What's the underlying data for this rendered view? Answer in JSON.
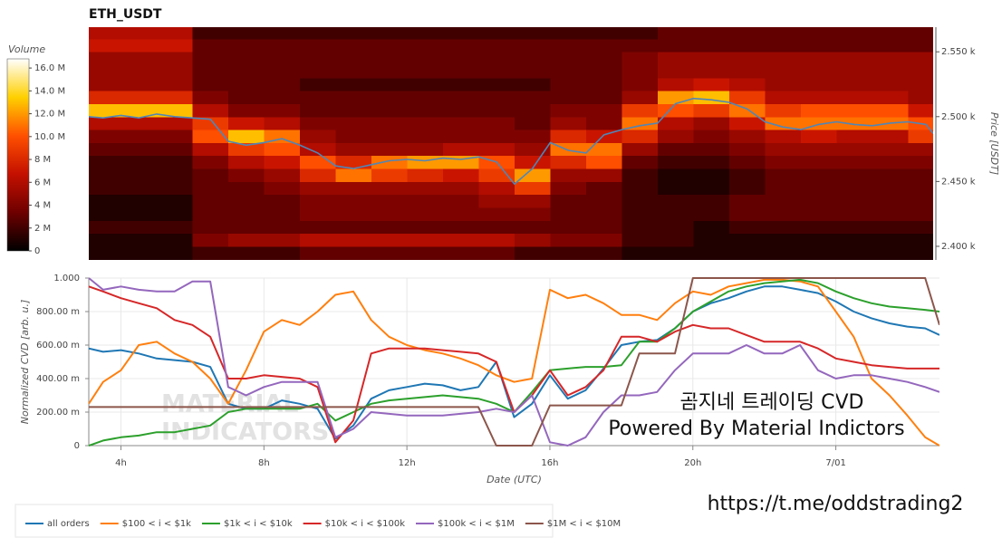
{
  "chart_data": [
    {
      "type": "heatmap",
      "title": "ETH_USDT",
      "x_bins": [
        3,
        4,
        5,
        6,
        7,
        8,
        9,
        10,
        11,
        12,
        13,
        14,
        15,
        16,
        17,
        18,
        19,
        20,
        21,
        22,
        23,
        24,
        25,
        26,
        27
      ],
      "y_bins": [
        2390,
        2400,
        2410,
        2420,
        2430,
        2440,
        2450,
        2460,
        2470,
        2480,
        2490,
        2500,
        2510,
        2520,
        2530,
        2540,
        2550,
        2560,
        2570
      ],
      "z": [
        [
          1,
          1,
          1,
          2,
          2,
          2,
          3,
          3,
          3,
          3,
          3,
          3,
          2,
          2,
          2,
          1,
          1,
          1,
          1,
          1,
          1,
          1,
          1,
          1
        ],
        [
          1,
          1,
          1,
          4,
          5,
          5,
          6,
          6,
          6,
          6,
          6,
          6,
          5,
          4,
          4,
          2,
          2,
          1,
          1,
          1,
          1,
          1,
          1,
          1
        ],
        [
          2,
          2,
          2,
          3,
          3,
          3,
          3,
          3,
          3,
          3,
          3,
          3,
          3,
          3,
          3,
          2,
          2,
          1,
          2,
          2,
          2,
          2,
          2,
          2
        ],
        [
          1,
          1,
          1,
          3,
          3,
          3,
          4,
          4,
          4,
          4,
          4,
          4,
          4,
          3,
          3,
          2,
          2,
          2,
          3,
          3,
          3,
          3,
          3,
          3
        ],
        [
          1,
          1,
          1,
          3,
          3,
          3,
          4,
          4,
          4,
          4,
          4,
          5,
          5,
          3,
          3,
          2,
          2,
          2,
          3,
          3,
          3,
          3,
          3,
          3
        ],
        [
          2,
          2,
          2,
          3,
          3,
          4,
          5,
          5,
          5,
          5,
          5,
          6,
          9,
          4,
          3,
          2,
          1,
          1,
          2,
          3,
          3,
          3,
          3,
          3
        ],
        [
          2,
          2,
          2,
          3,
          4,
          5,
          8,
          11,
          9,
          8,
          7,
          9,
          12,
          5,
          5,
          2,
          1,
          1,
          2,
          3,
          3,
          3,
          3,
          3
        ],
        [
          2,
          2,
          2,
          4,
          6,
          7,
          10,
          8,
          11,
          12,
          12,
          10,
          7,
          8,
          10,
          3,
          2,
          2,
          3,
          4,
          4,
          4,
          4,
          4
        ],
        [
          3,
          3,
          3,
          6,
          9,
          10,
          6,
          5,
          5,
          5,
          6,
          6,
          5,
          11,
          11,
          5,
          3,
          3,
          4,
          5,
          5,
          5,
          5,
          5
        ],
        [
          4,
          4,
          4,
          10,
          13,
          11,
          5,
          4,
          4,
          4,
          4,
          4,
          4,
          8,
          7,
          8,
          5,
          4,
          5,
          6,
          7,
          6,
          6,
          9
        ],
        [
          6,
          6,
          6,
          9,
          7,
          6,
          4,
          4,
          4,
          4,
          4,
          4,
          3,
          5,
          4,
          11,
          6,
          5,
          7,
          11,
          11,
          11,
          11,
          10
        ],
        [
          13,
          13,
          13,
          6,
          4,
          4,
          3,
          3,
          3,
          3,
          3,
          3,
          3,
          4,
          4,
          9,
          10,
          9,
          11,
          9,
          10,
          10,
          10,
          7
        ],
        [
          8,
          8,
          8,
          4,
          3,
          3,
          3,
          3,
          3,
          3,
          3,
          3,
          3,
          3,
          3,
          5,
          12,
          13,
          9,
          6,
          6,
          6,
          6,
          5
        ],
        [
          5,
          5,
          5,
          3,
          3,
          3,
          2,
          2,
          2,
          2,
          2,
          2,
          2,
          3,
          3,
          4,
          6,
          7,
          6,
          5,
          5,
          5,
          5,
          5
        ],
        [
          5,
          5,
          5,
          3,
          3,
          3,
          3,
          3,
          3,
          3,
          3,
          3,
          3,
          3,
          3,
          4,
          5,
          5,
          5,
          5,
          5,
          5,
          5,
          5
        ],
        [
          5,
          5,
          5,
          3,
          3,
          3,
          3,
          3,
          3,
          3,
          3,
          3,
          3,
          3,
          3,
          4,
          5,
          5,
          5,
          5,
          5,
          5,
          5,
          5
        ],
        [
          7,
          7,
          7,
          3,
          3,
          3,
          3,
          3,
          3,
          3,
          3,
          3,
          3,
          3,
          3,
          3,
          3,
          3,
          3,
          3,
          3,
          3,
          3,
          3
        ],
        [
          6,
          6,
          6,
          2,
          2,
          2,
          2,
          2,
          2,
          2,
          2,
          2,
          2,
          2,
          2,
          2,
          3,
          3,
          3,
          3,
          3,
          3,
          3,
          3
        ]
      ],
      "xlim": [
        3.1,
        26.7
      ],
      "ylim": [
        2389.5,
        2569
      ],
      "y_label": "Price [USDT]",
      "yticks": [
        {
          "value": 2400,
          "label": "2.400 k"
        },
        {
          "value": 2450,
          "label": "2.450 k"
        },
        {
          "value": 2500,
          "label": "2.500 k"
        },
        {
          "value": 2550,
          "label": "2.550 k"
        }
      ],
      "price_line": {
        "color": "#4f86b8",
        "x": [
          3.1,
          3.5,
          4,
          4.5,
          5,
          5.5,
          6,
          6.5,
          7,
          7.5,
          8,
          8.5,
          9,
          9.5,
          10,
          10.5,
          11,
          11.5,
          12,
          12.5,
          13,
          13.5,
          14,
          14.5,
          15,
          15.5,
          16,
          16.5,
          17,
          17.5,
          18,
          18.5,
          19,
          19.5,
          20,
          20.5,
          21,
          21.5,
          22,
          22.5,
          23,
          23.5,
          24,
          24.5,
          25,
          25.5,
          26,
          26.5,
          26.7
        ],
        "values": [
          2500,
          2499,
          2501,
          2499,
          2502,
          2500,
          2499,
          2498,
          2481,
          2478,
          2480,
          2483,
          2478,
          2472,
          2462,
          2460,
          2463,
          2466,
          2467,
          2466,
          2468,
          2467,
          2469,
          2465,
          2448,
          2460,
          2480,
          2474,
          2472,
          2486,
          2490,
          2493,
          2495,
          2510,
          2514,
          2513,
          2511,
          2506,
          2496,
          2492,
          2490,
          2494,
          2496,
          2494,
          2493,
          2495,
          2496,
          2494,
          2487
        ]
      },
      "colorbar": {
        "title": "Volume",
        "lim": [
          0,
          16.8
        ],
        "colorscale": [
          "#000000",
          "#6e0000",
          "#c41000",
          "#ff5000",
          "#ffd000",
          "#ffffff"
        ],
        "ticks": [
          0,
          {
            "value": 2,
            "label": "2 M"
          },
          {
            "value": 4,
            "label": "4 M"
          },
          {
            "value": 6,
            "label": "6 M"
          },
          {
            "value": 8,
            "label": "8 M"
          },
          {
            "value": 10,
            "label": "10.0 M"
          },
          {
            "value": 12,
            "label": "12.0 M"
          },
          {
            "value": 14,
            "label": "14.0 M"
          },
          {
            "value": 16,
            "label": "16.0 M"
          }
        ]
      }
    },
    {
      "type": "line",
      "x": [
        3.1,
        3.5,
        4,
        4.5,
        5,
        5.5,
        6,
        6.5,
        7,
        7.5,
        8,
        8.5,
        9,
        9.5,
        10,
        10.5,
        11,
        11.5,
        12,
        12.5,
        13,
        13.5,
        14,
        14.5,
        15,
        15.5,
        16,
        16.5,
        17,
        17.5,
        18,
        18.5,
        19,
        19.5,
        20,
        20.5,
        21,
        21.5,
        22,
        22.5,
        23,
        23.5,
        24,
        24.5,
        25,
        25.5,
        26,
        26.5,
        26.9
      ],
      "xlim": [
        3.1,
        26.9
      ],
      "xticks": [
        {
          "value": 4,
          "label": "4h"
        },
        {
          "value": 8,
          "label": "8h"
        },
        {
          "value": 12,
          "label": "12h"
        },
        {
          "value": 16,
          "label": "16h"
        },
        {
          "value": 20,
          "label": "20h"
        },
        {
          "value": 24,
          "label": "7/01"
        }
      ],
      "ylim": [
        0,
        1
      ],
      "yticks": [
        0,
        {
          "value": 0.2,
          "label": "200.00 m"
        },
        {
          "value": 0.4,
          "label": "400.00 m"
        },
        {
          "value": 0.6,
          "label": "600.00 m"
        },
        {
          "value": 0.8,
          "label": "800.00 m"
        },
        {
          "value": 1,
          "label": "1.000"
        }
      ],
      "x_label": "Date (UTC)",
      "y_label": "Normalized CVD [arb. u.]",
      "grid": true,
      "legend": "below",
      "series": [
        {
          "name": "all orders",
          "color": "#1f77b4",
          "values": [
            0.58,
            0.56,
            0.57,
            0.55,
            0.52,
            0.51,
            0.5,
            0.47,
            0.25,
            0.22,
            0.22,
            0.27,
            0.25,
            0.22,
            0.04,
            0.12,
            0.28,
            0.33,
            0.35,
            0.37,
            0.36,
            0.33,
            0.35,
            0.5,
            0.17,
            0.25,
            0.42,
            0.28,
            0.33,
            0.46,
            0.6,
            0.62,
            0.63,
            0.7,
            0.8,
            0.85,
            0.88,
            0.92,
            0.95,
            0.95,
            0.93,
            0.91,
            0.86,
            0.8,
            0.76,
            0.73,
            0.71,
            0.7,
            0.66
          ]
        },
        {
          "name": "$100 < i < $1k",
          "color": "#ff7f0e",
          "values": [
            0.25,
            0.38,
            0.45,
            0.6,
            0.62,
            0.55,
            0.5,
            0.4,
            0.25,
            0.45,
            0.68,
            0.75,
            0.72,
            0.8,
            0.9,
            0.92,
            0.75,
            0.65,
            0.6,
            0.57,
            0.55,
            0.52,
            0.48,
            0.42,
            0.38,
            0.4,
            0.93,
            0.88,
            0.9,
            0.85,
            0.78,
            0.78,
            0.75,
            0.85,
            0.92,
            0.9,
            0.95,
            0.97,
            0.99,
            0.99,
            0.98,
            0.95,
            0.8,
            0.65,
            0.4,
            0.3,
            0.18,
            0.05,
            0.0
          ]
        },
        {
          "name": "$1k < i < $10k",
          "color": "#2ca02c",
          "values": [
            0.0,
            0.03,
            0.05,
            0.06,
            0.08,
            0.08,
            0.1,
            0.12,
            0.2,
            0.22,
            0.22,
            0.22,
            0.22,
            0.25,
            0.15,
            0.2,
            0.25,
            0.27,
            0.28,
            0.29,
            0.3,
            0.29,
            0.28,
            0.25,
            0.2,
            0.32,
            0.45,
            0.46,
            0.47,
            0.47,
            0.48,
            0.62,
            0.62,
            0.7,
            0.8,
            0.86,
            0.92,
            0.95,
            0.97,
            0.98,
            0.99,
            0.97,
            0.92,
            0.88,
            0.85,
            0.83,
            0.82,
            0.81,
            0.8
          ]
        },
        {
          "name": "$10k < i < $100k",
          "color": "#d62728",
          "values": [
            0.95,
            0.92,
            0.88,
            0.85,
            0.82,
            0.75,
            0.72,
            0.65,
            0.4,
            0.4,
            0.42,
            0.41,
            0.4,
            0.35,
            0.02,
            0.15,
            0.55,
            0.58,
            0.58,
            0.58,
            0.57,
            0.56,
            0.55,
            0.5,
            0.2,
            0.3,
            0.45,
            0.3,
            0.35,
            0.45,
            0.65,
            0.65,
            0.62,
            0.68,
            0.72,
            0.7,
            0.7,
            0.66,
            0.62,
            0.62,
            0.62,
            0.58,
            0.52,
            0.5,
            0.48,
            0.47,
            0.46,
            0.46,
            0.46
          ]
        },
        {
          "name": "$100k < i < $1M",
          "color": "#9467bd",
          "values": [
            1.0,
            0.93,
            0.95,
            0.93,
            0.92,
            0.92,
            0.98,
            0.98,
            0.35,
            0.3,
            0.35,
            0.38,
            0.38,
            0.38,
            0.05,
            0.1,
            0.2,
            0.19,
            0.18,
            0.18,
            0.18,
            0.19,
            0.2,
            0.22,
            0.2,
            0.3,
            0.02,
            0.0,
            0.05,
            0.2,
            0.3,
            0.3,
            0.32,
            0.45,
            0.55,
            0.55,
            0.55,
            0.6,
            0.55,
            0.55,
            0.6,
            0.45,
            0.4,
            0.42,
            0.42,
            0.4,
            0.38,
            0.35,
            0.32
          ]
        },
        {
          "name": "$1M < i < $10M",
          "color": "#8c564b",
          "values": [
            0.23,
            0.23,
            0.23,
            0.23,
            0.23,
            0.23,
            0.23,
            0.23,
            0.23,
            0.23,
            0.23,
            0.23,
            0.23,
            0.23,
            0.23,
            0.23,
            0.23,
            0.23,
            0.23,
            0.23,
            0.23,
            0.23,
            0.23,
            0.0,
            0.0,
            0.0,
            0.24,
            0.24,
            0.24,
            0.24,
            0.24,
            0.55,
            0.55,
            0.55,
            1.0,
            1.0,
            1.0,
            1.0,
            1.0,
            1.0,
            1.0,
            1.0,
            1.0,
            1.0,
            1.0,
            1.0,
            1.0,
            1.0,
            0.72
          ]
        }
      ],
      "annotations": [
        "곰지네 트레이딩 CVD",
        "Powered By Material Indictors",
        "https://t.me/oddstrading2"
      ],
      "watermark": [
        "MATERIAL",
        "INDICATORS"
      ]
    }
  ]
}
